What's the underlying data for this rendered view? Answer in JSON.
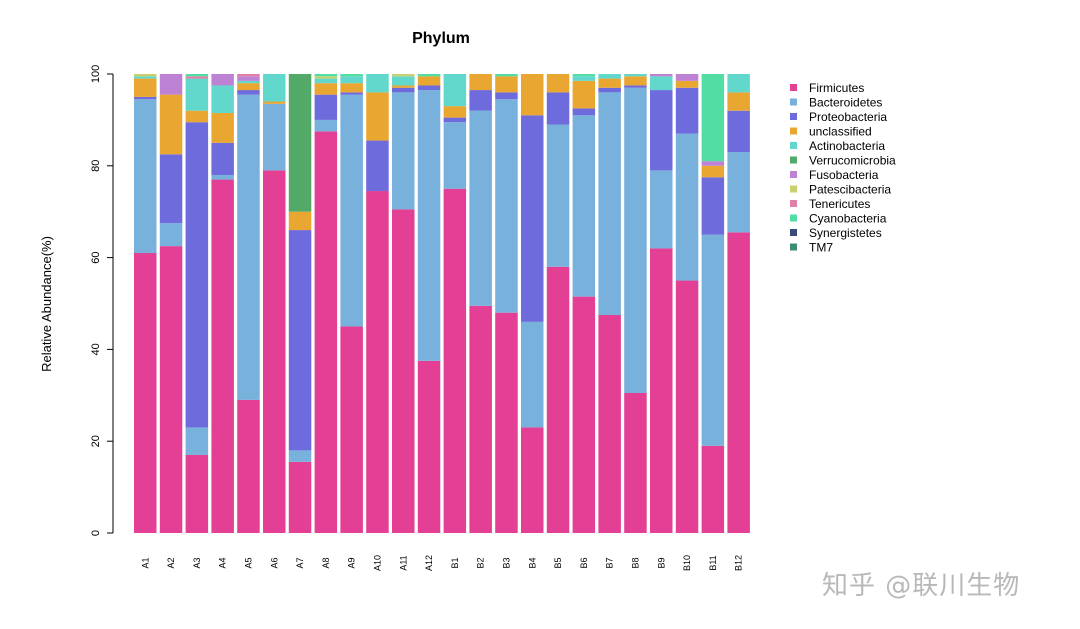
{
  "chart_data": {
    "type": "bar",
    "stacked": true,
    "title": "Phylum",
    "ylabel": "Relative Abundance(%)",
    "xlabel": "",
    "ylim": [
      0,
      100
    ],
    "yticks": [
      0,
      20,
      40,
      60,
      80,
      100
    ],
    "grid": false,
    "legend_position": "right",
    "categories": [
      "A1",
      "A2",
      "A3",
      "A4",
      "A5",
      "A6",
      "A7",
      "A8",
      "A9",
      "A10",
      "A11",
      "A12",
      "B1",
      "B2",
      "B3",
      "B4",
      "B5",
      "B6",
      "B7",
      "B8",
      "B9",
      "B10",
      "B11",
      "B12"
    ],
    "series": [
      {
        "name": "Firmicutes",
        "color": "#E23F95",
        "values": [
          61,
          62.5,
          17,
          77,
          29,
          79,
          15.5,
          87.5,
          45,
          74.5,
          70.5,
          37.5,
          75,
          49.5,
          48,
          23,
          58,
          51.5,
          47.5,
          30.5,
          62,
          55,
          19,
          65.5
        ]
      },
      {
        "name": "Bacteroidetes",
        "color": "#78B1DC",
        "values": [
          33.5,
          5,
          6,
          1,
          66.5,
          14.5,
          2.5,
          2.5,
          50.5,
          0,
          25.5,
          59,
          14.5,
          42.5,
          46.5,
          23,
          31,
          39.5,
          48.5,
          66.5,
          17,
          32,
          46,
          17.5
        ]
      },
      {
        "name": "Proteobacteria",
        "color": "#6E6BDC",
        "values": [
          0.5,
          15,
          66.5,
          7,
          1,
          0,
          48,
          5.5,
          0.5,
          11,
          1,
          1,
          1,
          4.5,
          1.5,
          45,
          7,
          1.5,
          1,
          0.5,
          17.5,
          10,
          12.5,
          9
        ]
      },
      {
        "name": "unclassified",
        "color": "#E9A630",
        "values": [
          4,
          13,
          2.5,
          6.5,
          1.5,
          0.5,
          4,
          2.5,
          2,
          10.5,
          0.5,
          2,
          2.5,
          3.5,
          3.5,
          9,
          4,
          6,
          2,
          2,
          0,
          1.5,
          2.5,
          4
        ]
      },
      {
        "name": "Actinobacteria",
        "color": "#62D8CD",
        "values": [
          0.5,
          0,
          7,
          6,
          0.5,
          6,
          0,
          1,
          1.5,
          4,
          2,
          0,
          7,
          0,
          0,
          0,
          0,
          1,
          1,
          0.5,
          3,
          0,
          0,
          4
        ]
      },
      {
        "name": "Verrucomicrobia",
        "color": "#52A968",
        "values": [
          0,
          0,
          0,
          0,
          0,
          0,
          30,
          0,
          0,
          0,
          0,
          0,
          0,
          0,
          0,
          0,
          0,
          0,
          0,
          0,
          0,
          0,
          0,
          0
        ]
      },
      {
        "name": "Fusobacteria",
        "color": "#BE82D4",
        "values": [
          0,
          4.5,
          0,
          2.5,
          1,
          0,
          0,
          0,
          0,
          0,
          0,
          0,
          0,
          0,
          0,
          0,
          0,
          0,
          0,
          0,
          0.5,
          1.5,
          1,
          0
        ]
      },
      {
        "name": "Patescibacteria",
        "color": "#C8D16D",
        "values": [
          0.5,
          0,
          0,
          0,
          0,
          0,
          0,
          0.5,
          0,
          0,
          0.5,
          0,
          0,
          0,
          0,
          0,
          0,
          0,
          0,
          0,
          0,
          0,
          0,
          0
        ]
      },
      {
        "name": "Tenericutes",
        "color": "#E07FA8",
        "values": [
          0,
          0,
          0.5,
          0,
          0.5,
          0,
          0,
          0,
          0,
          0,
          0,
          0,
          0,
          0,
          0,
          0,
          0,
          0,
          0,
          0,
          0,
          0,
          0,
          0
        ]
      },
      {
        "name": "Cyanobacteria",
        "color": "#52DDA5",
        "values": [
          0,
          0,
          0.5,
          0,
          0,
          0,
          0,
          0.5,
          0.5,
          0,
          0,
          0.5,
          0,
          0,
          0.5,
          0,
          0,
          0.5,
          0,
          0,
          0,
          0,
          19,
          0
        ]
      },
      {
        "name": "Synergistetes",
        "color": "#3C4A7A",
        "values": [
          0,
          0,
          0,
          0,
          0,
          0,
          0,
          0,
          0,
          0,
          0,
          0,
          0,
          0,
          0,
          0,
          0,
          0,
          0,
          0,
          0,
          0,
          0,
          0
        ]
      },
      {
        "name": "TM7",
        "color": "#3F8C76",
        "values": [
          0,
          0,
          0,
          0,
          0,
          0,
          0,
          0,
          0,
          0,
          0,
          0,
          0,
          0,
          0,
          0,
          0,
          0,
          0,
          0,
          0,
          0,
          0,
          0
        ]
      }
    ]
  },
  "watermark": "知乎 @联川生物"
}
